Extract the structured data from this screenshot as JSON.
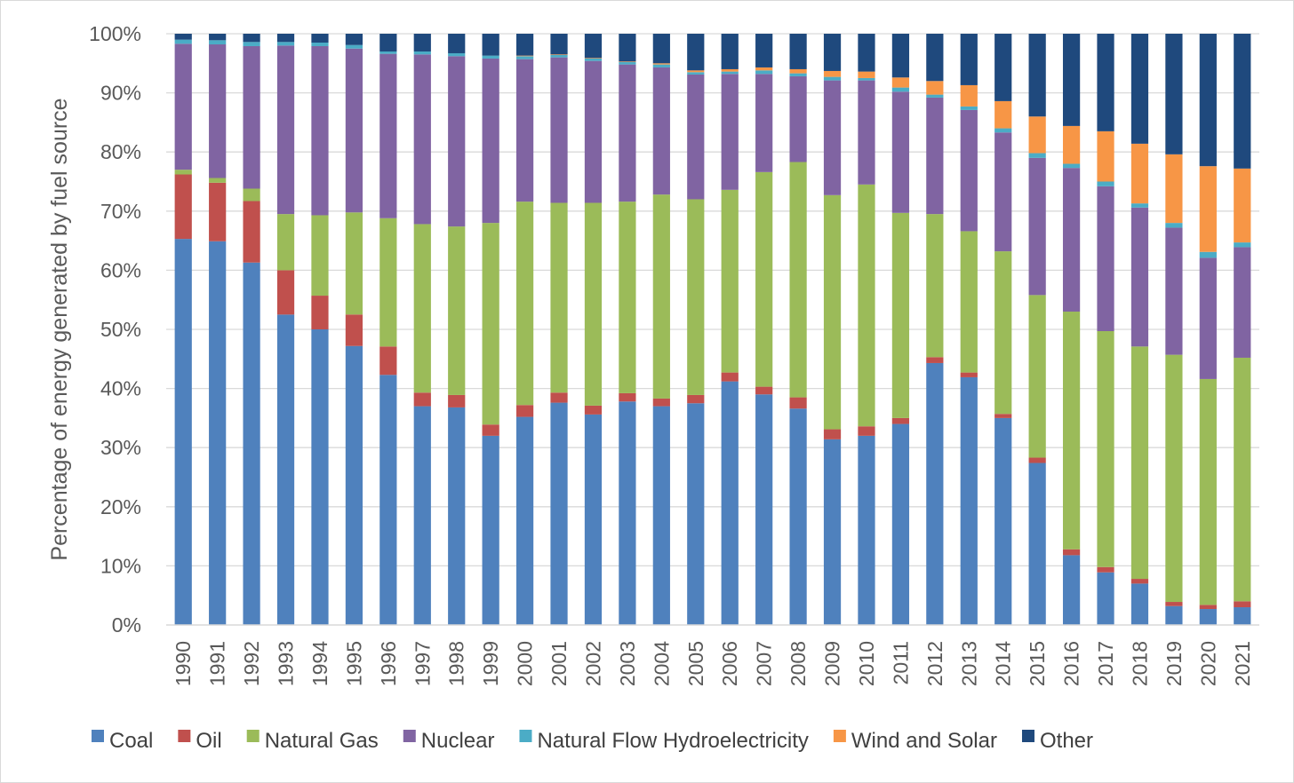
{
  "chart_data": {
    "type": "bar",
    "stacked": true,
    "percent": true,
    "title": "",
    "xlabel": "",
    "ylabel": "Percentage of energy generated by fuel source",
    "ylim": [
      0,
      100
    ],
    "y_ticks": [
      "0%",
      "10%",
      "20%",
      "30%",
      "40%",
      "50%",
      "60%",
      "70%",
      "80%",
      "90%",
      "100%"
    ],
    "grid": true,
    "legend_position": "bottom",
    "categories": [
      "1990",
      "1991",
      "1992",
      "1993",
      "1994",
      "1995",
      "1996",
      "1997",
      "1998",
      "1999",
      "2000",
      "2001",
      "2002",
      "2003",
      "2004",
      "2005",
      "2006",
      "2007",
      "2008",
      "2009",
      "2010",
      "2011",
      "2012",
      "2013",
      "2014",
      "2015",
      "2016",
      "2017",
      "2018",
      "2019",
      "2020",
      "2021"
    ],
    "series": [
      {
        "name": "Coal",
        "color": "#4f81bd",
        "values": [
          65.3,
          64.9,
          61.3,
          52.5,
          50.0,
          47.0,
          42.3,
          37.0,
          36.8,
          32.0,
          35.2,
          37.6,
          35.6,
          37.8,
          37.0,
          37.5,
          41.2,
          39.0,
          36.6,
          31.4,
          32.0,
          34.0,
          44.3,
          41.9,
          35.0,
          27.4,
          11.8,
          8.9,
          7.0,
          3.2,
          2.7,
          3.0
        ]
      },
      {
        "name": "Oil",
        "color": "#c0504d",
        "values": [
          10.9,
          9.9,
          10.4,
          7.5,
          5.7,
          5.3,
          4.8,
          2.3,
          2.1,
          1.9,
          2.0,
          1.7,
          1.5,
          1.4,
          1.3,
          1.4,
          1.5,
          1.3,
          1.9,
          1.7,
          1.6,
          1.0,
          1.0,
          0.8,
          0.7,
          0.9,
          1.0,
          0.9,
          0.8,
          0.7,
          0.7,
          1.0
        ]
      },
      {
        "name": "Natural Gas",
        "color": "#9bbb59",
        "values": [
          0.8,
          0.8,
          2.1,
          9.5,
          13.6,
          17.2,
          21.7,
          28.5,
          28.5,
          34.1,
          34.4,
          32.1,
          34.3,
          32.4,
          34.5,
          33.1,
          30.9,
          36.3,
          39.8,
          39.6,
          40.9,
          34.7,
          24.2,
          23.9,
          27.5,
          27.5,
          40.2,
          39.9,
          39.3,
          41.8,
          38.2,
          41.2
        ]
      },
      {
        "name": "Nuclear",
        "color": "#8064a2",
        "values": [
          21.3,
          22.6,
          24.1,
          28.5,
          28.6,
          27.6,
          27.8,
          28.7,
          28.8,
          27.8,
          24.1,
          24.6,
          24.0,
          23.2,
          21.5,
          21.1,
          19.6,
          16.6,
          14.5,
          19.4,
          17.6,
          20.5,
          19.7,
          20.5,
          20.1,
          23.2,
          24.3,
          24.5,
          23.5,
          21.5,
          20.5,
          18.7
        ]
      },
      {
        "name": "Natural Flow Hydroelectricity",
        "color": "#4bacc6",
        "values": [
          0.7,
          0.7,
          0.7,
          0.6,
          0.6,
          0.6,
          0.4,
          0.5,
          0.5,
          0.5,
          0.5,
          0.4,
          0.4,
          0.4,
          0.5,
          0.4,
          0.4,
          0.6,
          0.5,
          0.6,
          0.4,
          0.7,
          0.5,
          0.6,
          0.7,
          0.8,
          0.7,
          0.8,
          0.7,
          0.8,
          1.0,
          0.8
        ]
      },
      {
        "name": "Wind and Solar",
        "color": "#f79646",
        "values": [
          0.0,
          0.0,
          0.0,
          0.0,
          0.0,
          0.0,
          0.0,
          0.0,
          0.0,
          0.0,
          0.1,
          0.1,
          0.1,
          0.1,
          0.2,
          0.3,
          0.4,
          0.5,
          0.7,
          1.0,
          1.1,
          1.7,
          2.3,
          3.6,
          4.6,
          6.2,
          6.4,
          8.5,
          10.1,
          11.6,
          14.5,
          12.5
        ]
      },
      {
        "name": "Other",
        "color": "#1f497d",
        "values": [
          1.0,
          1.1,
          1.4,
          1.4,
          1.5,
          1.9,
          3.0,
          3.0,
          3.3,
          3.7,
          3.7,
          3.5,
          4.1,
          4.7,
          5.0,
          6.2,
          6.0,
          5.7,
          6.0,
          6.3,
          6.4,
          7.4,
          8.0,
          8.7,
          11.4,
          14.0,
          15.6,
          16.5,
          18.6,
          20.4,
          22.4,
          22.8
        ]
      }
    ]
  }
}
